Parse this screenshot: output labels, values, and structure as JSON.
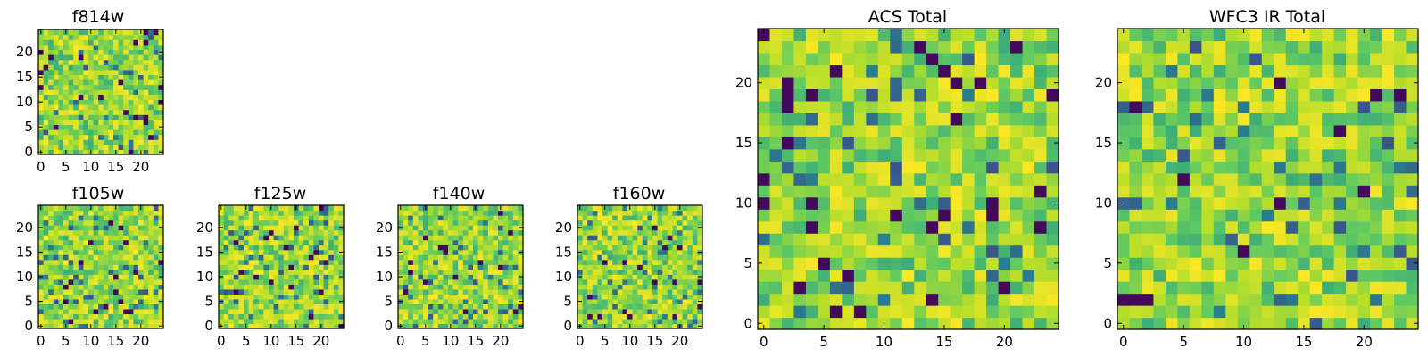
{
  "chart_data": [
    {
      "type": "heatmap",
      "title": "f814w",
      "grid_size": 25,
      "x_ticks": [
        "0",
        "5",
        "10",
        "15",
        "20"
      ],
      "y_ticks": [
        "0",
        "5",
        "10",
        "15",
        "20"
      ],
      "xlim": [
        0,
        25
      ],
      "ylim": [
        0,
        25
      ],
      "colormap": "viridis",
      "value_range": [
        0,
        1
      ]
    },
    {
      "type": "heatmap",
      "title": "f105w",
      "grid_size": 25,
      "x_ticks": [
        "0",
        "5",
        "10",
        "15",
        "20"
      ],
      "y_ticks": [
        "0",
        "5",
        "10",
        "15",
        "20"
      ],
      "xlim": [
        0,
        25
      ],
      "ylim": [
        0,
        25
      ],
      "colormap": "viridis",
      "value_range": [
        0,
        1
      ]
    },
    {
      "type": "heatmap",
      "title": "f125w",
      "grid_size": 25,
      "x_ticks": [
        "0",
        "5",
        "10",
        "15",
        "20"
      ],
      "y_ticks": [
        "0",
        "5",
        "10",
        "15",
        "20"
      ],
      "xlim": [
        0,
        25
      ],
      "ylim": [
        0,
        25
      ],
      "colormap": "viridis",
      "value_range": [
        0,
        1
      ]
    },
    {
      "type": "heatmap",
      "title": "f140w",
      "grid_size": 25,
      "x_ticks": [
        "0",
        "5",
        "10",
        "15",
        "20"
      ],
      "y_ticks": [
        "0",
        "5",
        "10",
        "15",
        "20"
      ],
      "xlim": [
        0,
        25
      ],
      "ylim": [
        0,
        25
      ],
      "colormap": "viridis",
      "value_range": [
        0,
        1
      ]
    },
    {
      "type": "heatmap",
      "title": "f160w",
      "grid_size": 25,
      "x_ticks": [
        "0",
        "5",
        "10",
        "15",
        "20"
      ],
      "y_ticks": [
        "0",
        "5",
        "10",
        "15",
        "20"
      ],
      "xlim": [
        0,
        25
      ],
      "ylim": [
        0,
        25
      ],
      "colormap": "viridis",
      "value_range": [
        0,
        1
      ]
    },
    {
      "type": "heatmap",
      "title": "ACS Total",
      "grid_size": 25,
      "x_ticks": [
        "0",
        "5",
        "10",
        "15",
        "20"
      ],
      "y_ticks": [
        "0",
        "5",
        "10",
        "15",
        "20"
      ],
      "xlim": [
        0,
        25
      ],
      "ylim": [
        0,
        25
      ],
      "colormap": "viridis",
      "value_range": [
        0,
        1
      ]
    },
    {
      "type": "heatmap",
      "title": "WFC3 IR Total",
      "grid_size": 25,
      "x_ticks": [
        "0",
        "5",
        "10",
        "15",
        "20"
      ],
      "y_ticks": [
        "0",
        "5",
        "10",
        "15",
        "20"
      ],
      "xlim": [
        0,
        25
      ],
      "ylim": [
        0,
        25
      ],
      "colormap": "viridis",
      "value_range": [
        0,
        1
      ]
    }
  ],
  "colors": {
    "axis": "#000000",
    "viridis_stops": [
      "#440154",
      "#3b528b",
      "#21918c",
      "#5ec962",
      "#b5de2b",
      "#fde725"
    ]
  }
}
